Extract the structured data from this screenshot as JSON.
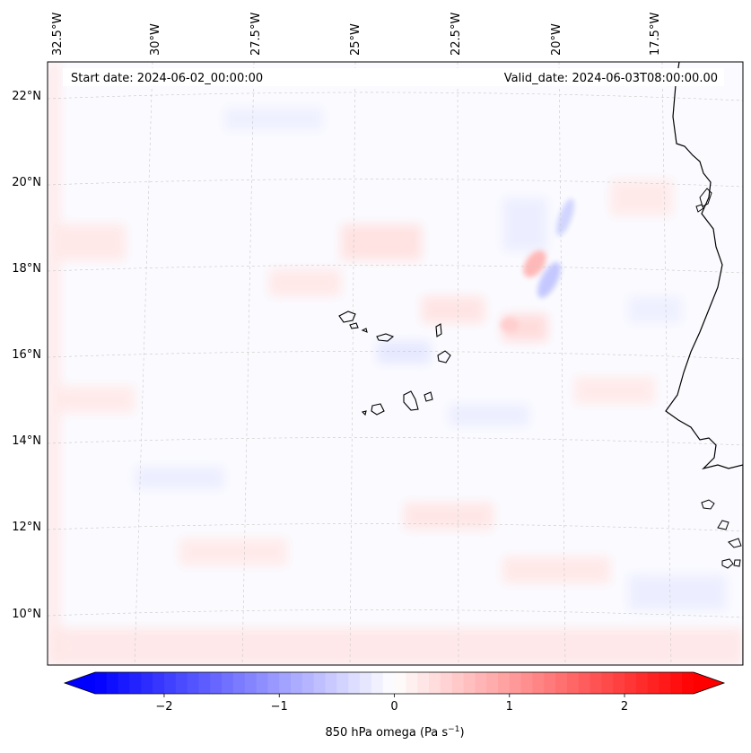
{
  "map": {
    "start_label": "Start date: 2024-06-02_00:00:00",
    "valid_label": "Valid_date: 2024-06-03T08:00:00.00",
    "lon_labels": [
      "32.5°W",
      "30°W",
      "27.5°W",
      "25°W",
      "22.5°W",
      "20°W",
      "17.5°W"
    ],
    "lat_labels": [
      "22°N",
      "20°N",
      "18°N",
      "16°N",
      "14°N",
      "12°N",
      "10°N"
    ],
    "field": "850 hPa omega",
    "colormap": "bwr",
    "gridlines": true,
    "coastlines": true
  },
  "colorbar": {
    "ticks": [
      "−2",
      "−1",
      "0",
      "1",
      "2"
    ],
    "tick_values": [
      -2,
      -1,
      0,
      1,
      2
    ],
    "range": [
      -2.6,
      2.6
    ],
    "extend": "both",
    "label_main": "850 hPa omega (Pa s",
    "label_sup": "−1",
    "label_end": ")",
    "min_color": "#0000ff",
    "mid_color": "#ffffff",
    "max_color": "#ff0000"
  }
}
